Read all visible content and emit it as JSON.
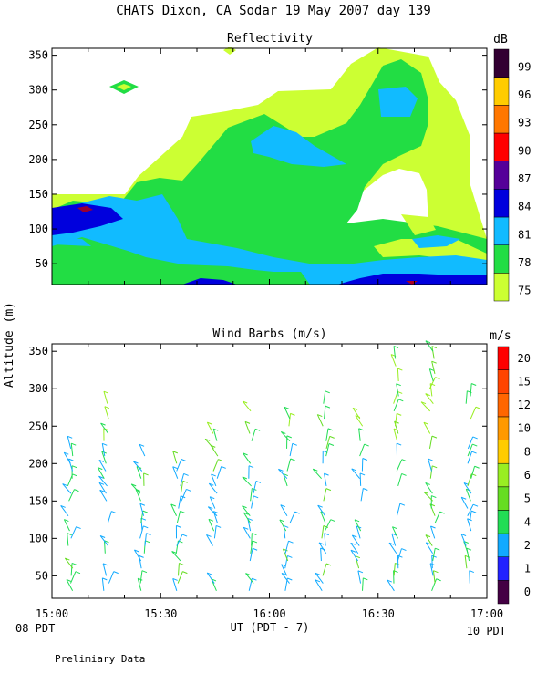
{
  "header": {
    "title": "CHATS Dixon, CA  Sodar  19 May 2007  day 139",
    "shared_ylabel": "Altitude (m)",
    "xlabel": "UT  (PDT - 7)",
    "x_left_note": "08 PDT",
    "x_right_note": "10 PDT",
    "footer": "Prelimiary Data"
  },
  "chart_data": [
    {
      "type": "contour",
      "title": "Reflectivity",
      "colorbar_unit": "dB",
      "x_ticks": [
        "15:00",
        "15:30",
        "16:00",
        "16:30",
        "17:00"
      ],
      "x_range_minutes_since_15UT": [
        0,
        120
      ],
      "y_ticks": [
        50,
        100,
        150,
        200,
        250,
        300,
        350
      ],
      "ylim": [
        20,
        360
      ],
      "levels": [
        {
          "label": "75",
          "color": "#ccff33"
        },
        {
          "label": "78",
          "color": "#22dd44"
        },
        {
          "label": "81",
          "color": "#11bbff"
        },
        {
          "label": "84",
          "color": "#0000dd"
        },
        {
          "label": "87",
          "color": "#550099"
        },
        {
          "label": "90",
          "color": "#ff0000"
        },
        {
          "label": "93",
          "color": "#ff7700"
        },
        {
          "label": "96",
          "color": "#ffcc00"
        },
        {
          "label": "99",
          "color": "#330033"
        }
      ],
      "regions_approx": [
        {
          "level": "75",
          "description": "broad layer covering ~40-160 m across period, rising to ~350 m after 16:20"
        },
        {
          "level": "78",
          "description": "mid layer 40-230 m, rising to ~350 m at 16:30-16:45"
        },
        {
          "level": "81",
          "description": "pockets near 80-160 m at 15:00-15:20, 160-240 m near 16:00, 270-300 m near 16:35"
        },
        {
          "level": "84",
          "description": "near 110-145 m at 15:00-15:15 and near surface 40-55 m"
        }
      ]
    },
    {
      "type": "wind_barbs",
      "title": "Wind Barbs (m/s)",
      "colorbar_unit": "m/s",
      "x_ticks": [
        "15:00",
        "15:30",
        "16:00",
        "16:30",
        "17:00"
      ],
      "y_ticks": [
        50,
        100,
        150,
        200,
        250,
        300,
        350
      ],
      "ylim": [
        20,
        360
      ],
      "colorbar_labels": [
        "0",
        "1",
        "2",
        "4",
        "5",
        "6",
        "8",
        "10",
        "12",
        "15",
        "20"
      ],
      "colorbar_colors": [
        "#440044",
        "#2222ff",
        "#11aaff",
        "#22dd55",
        "#66dd22",
        "#99ee22",
        "#ffcc00",
        "#ff9900",
        "#ff6600",
        "#ff4400",
        "#ff0000"
      ],
      "profile_times_min": [
        5,
        15,
        25,
        35,
        45,
        55,
        65,
        75,
        85,
        95,
        105,
        115
      ],
      "altitudes_m": [
        30,
        40,
        50,
        60,
        70,
        80,
        90,
        100,
        110,
        120,
        130,
        140,
        150,
        160,
        170,
        180,
        190,
        200,
        210,
        220,
        230,
        240,
        250,
        260,
        270,
        280,
        290,
        300,
        310,
        320,
        330,
        340,
        350
      ]
    }
  ]
}
